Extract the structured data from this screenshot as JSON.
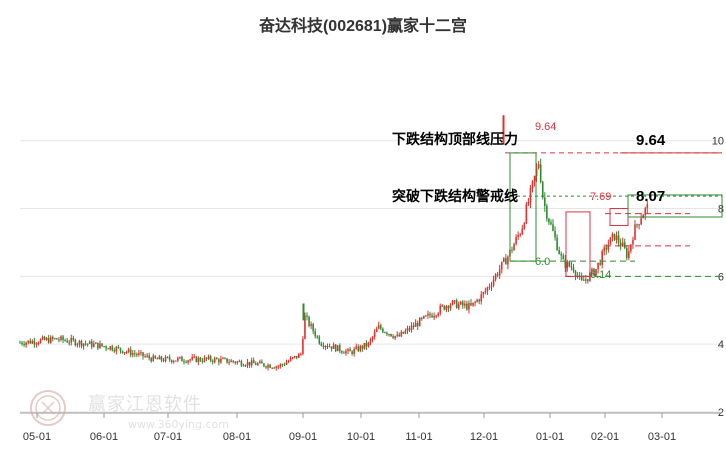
{
  "chart_data": {
    "type": "candlestick",
    "title": "奋达科技(002681)赢家十二宫",
    "y_ticks": [
      "10",
      "8",
      "6",
      "4",
      "2"
    ],
    "y_tick_values": [
      10,
      8,
      6,
      4,
      2
    ],
    "ylim": [
      2,
      11.2
    ],
    "x_ticks": [
      "05-01",
      "06-01",
      "07-01",
      "08-01",
      "09-01",
      "10-01",
      "11-01",
      "12-01",
      "01-01",
      "02-01",
      "03-01"
    ],
    "grid": true,
    "colors": {
      "up": "#e0312d",
      "down": "#2e8b2e",
      "resistance": "#d9333f",
      "support": "#2e8b2e",
      "grid": "#e6e6e6"
    },
    "price_path": [
      [
        "04-20",
        4.05
      ],
      [
        "05-10",
        4.15
      ],
      [
        "06-05",
        3.9
      ],
      [
        "06-25",
        3.55
      ],
      [
        "07-20",
        3.55
      ],
      [
        "08-05",
        3.45
      ],
      [
        "08-20",
        3.35
      ],
      [
        "08-30",
        3.7
      ],
      [
        "09-02",
        4.8
      ],
      [
        "09-10",
        4.05
      ],
      [
        "09-25",
        3.75
      ],
      [
        "10-05",
        4.0
      ],
      [
        "10-10",
        4.5
      ],
      [
        "10-20",
        4.2
      ],
      [
        "11-01",
        4.65
      ],
      [
        "11-15",
        5.2
      ],
      [
        "11-25",
        5.1
      ],
      [
        "12-01",
        5.5
      ],
      [
        "12-05",
        5.9
      ],
      [
        "12-12",
        6.6
      ],
      [
        "12-18",
        7.4
      ],
      [
        "12-22",
        8.4
      ],
      [
        "12-26",
        9.4
      ],
      [
        "12-28",
        8.2
      ],
      [
        "01-02",
        7.4
      ],
      [
        "01-08",
        6.4
      ],
      [
        "01-14",
        6.25
      ],
      [
        "01-18",
        5.8
      ],
      [
        "01-26",
        6.2
      ],
      [
        "02-02",
        6.9
      ],
      [
        "02-06",
        7.2
      ],
      [
        "02-10",
        6.9
      ],
      [
        "02-13",
        6.6
      ],
      [
        "02-16",
        7.3
      ],
      [
        "02-20",
        7.8
      ],
      [
        "02-24",
        8.07
      ]
    ],
    "resistance": {
      "label": "下跌结构顶部线压力",
      "value": 9.64,
      "value_label": "9.64",
      "small_label": "9.64"
    },
    "breakout": {
      "label": "突破下跌结构警戒线",
      "value": 8.07,
      "value_label": "8.07",
      "small_label": "7.69"
    },
    "support_label": "6.14",
    "box_label": "6.0"
  },
  "watermark": {
    "text": "赢家江恩软件",
    "url": "www.360ying.com"
  }
}
